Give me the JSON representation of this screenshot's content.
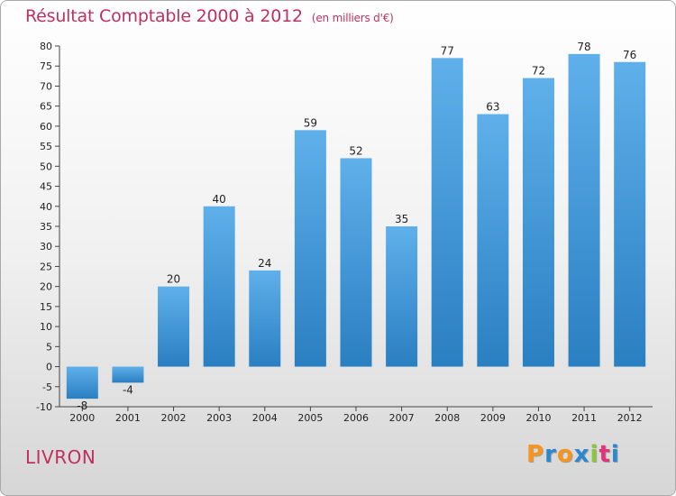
{
  "chart_data": {
    "type": "bar",
    "title": "Résultat Comptable 2000 à 2012",
    "subtitle": "(en milliers d'€)",
    "categories": [
      "2000",
      "2001",
      "2002",
      "2003",
      "2004",
      "2005",
      "2006",
      "2007",
      "2008",
      "2009",
      "2010",
      "2011",
      "2012"
    ],
    "values": [
      -8,
      -4,
      20,
      40,
      24,
      59,
      52,
      35,
      77,
      63,
      72,
      78,
      76
    ],
    "value_labels": [
      "-8",
      "-4",
      "20",
      "40",
      "24",
      "59",
      "52",
      "35",
      "77",
      "63",
      "72",
      "78",
      "76"
    ],
    "ylim": [
      -10,
      80
    ],
    "yticks": [
      -10,
      -5,
      0,
      5,
      10,
      15,
      20,
      25,
      30,
      35,
      40,
      45,
      50,
      55,
      60,
      65,
      70,
      75,
      80
    ],
    "grid": false,
    "xlabel": "",
    "ylabel": "",
    "colors": {
      "bar_top": "#5fb0ea",
      "bar_bottom": "#2a7fc2",
      "title": "#c0305e"
    }
  },
  "town": "LIVRON",
  "logo": {
    "letters": [
      "P",
      "r",
      "o",
      "x",
      "i",
      "t",
      "i"
    ],
    "colors": [
      "#f7941d",
      "#2a88d0",
      "#f7941d",
      "#2a88d0",
      "#8cc63f",
      "#e0337a",
      "#2a88d0"
    ]
  }
}
